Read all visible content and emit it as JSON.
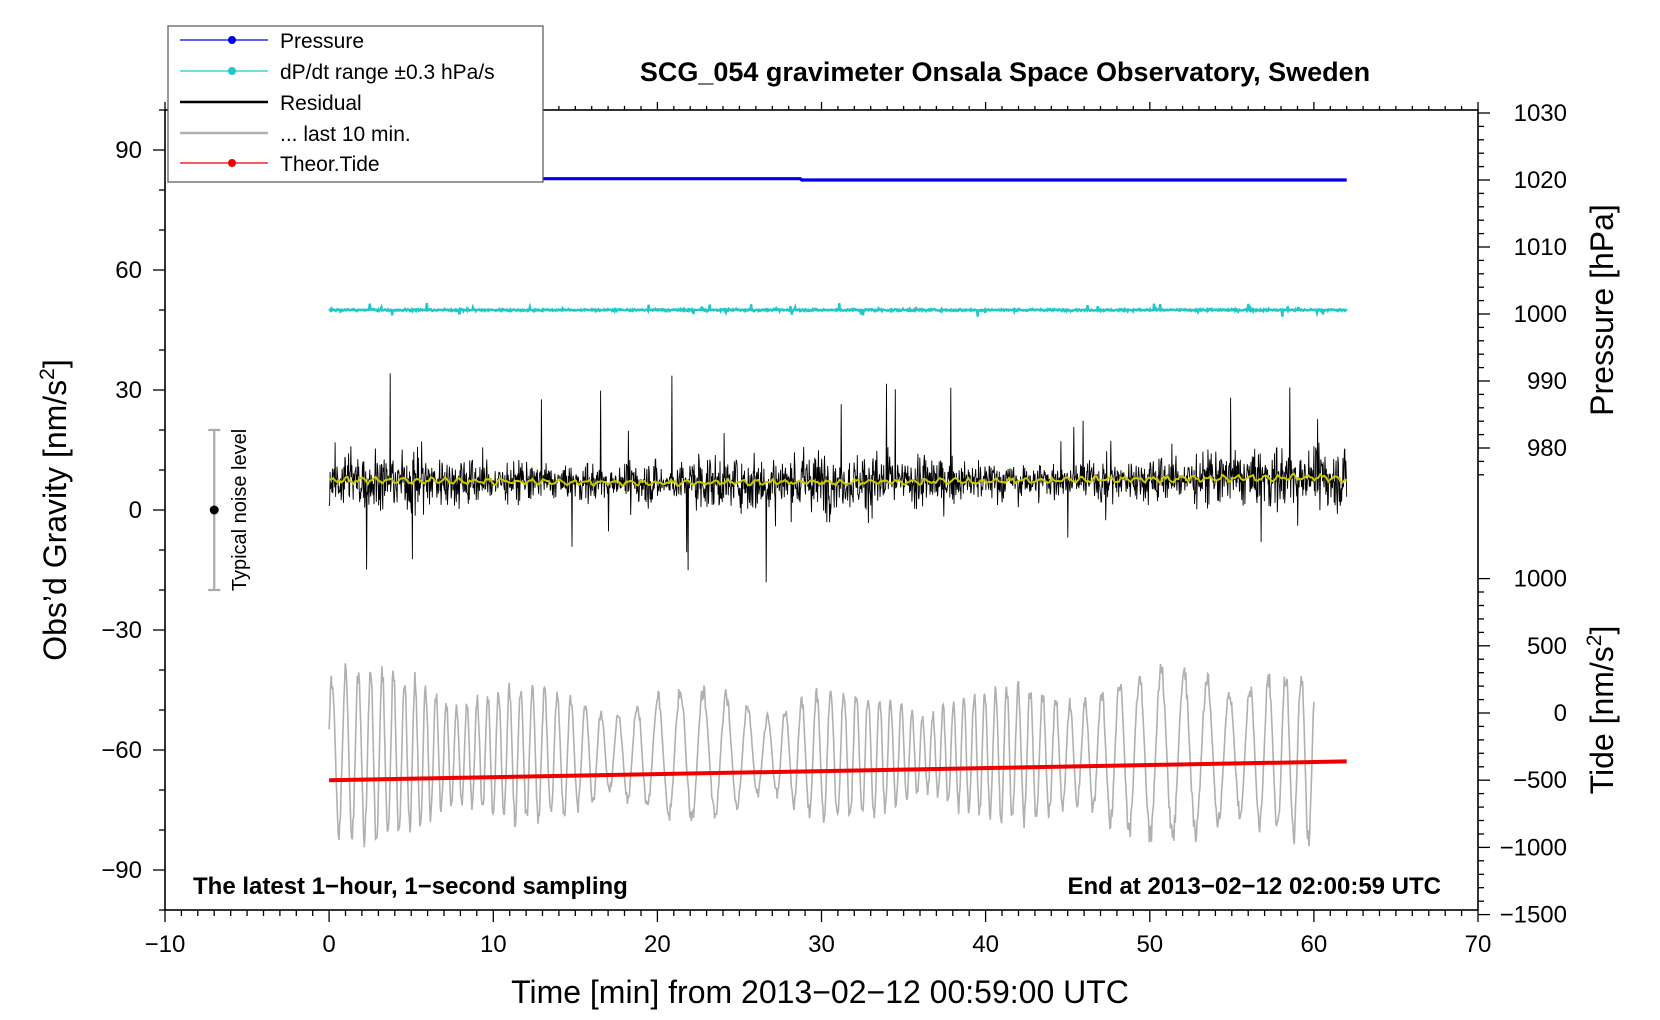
{
  "chart_data": {
    "type": "line",
    "title": "SCG_054 gravimeter Onsala Space Observatory, Sweden",
    "xlabel": "Time [min] from 2013−02−12 00:59:00 UTC",
    "ylabel_left": "Obs’d Gravity [nm/s²]",
    "ylabel_right_top": "Pressure [hPa]",
    "ylabel_right_bottom": "Tide [nm/s²]",
    "xlim": [
      -10,
      70
    ],
    "ylim_left": [
      -100,
      100
    ],
    "ylim_pressure": [
      976,
      1030
    ],
    "ylim_tide": [
      -1500,
      1000
    ],
    "x_ticks": [
      "−10",
      "0",
      "10",
      "20",
      "30",
      "40",
      "50",
      "60",
      "70"
    ],
    "y_left_ticks": [
      "90",
      "60",
      "30",
      "0",
      "−30",
      "−60",
      "−90"
    ],
    "y_pressure_ticks": [
      "1030",
      "1020",
      "1010",
      "1000",
      "990",
      "980"
    ],
    "y_tide_ticks": [
      "1000",
      "500",
      "0",
      "−500",
      "−1000",
      "−1500"
    ],
    "annotations": {
      "bottom_left": "The latest 1−hour, 1−second sampling",
      "bottom_right": "End at 2013−02−12 02:00:59 UTC",
      "noise_label": "Typical noise level"
    },
    "noise_bar": {
      "x": -7,
      "center": 0,
      "low": -20,
      "high": 20
    },
    "legend": {
      "placement": "top-left",
      "entries": [
        {
          "label": "Pressure",
          "color": "#0000ee",
          "style": "line-dot"
        },
        {
          "label": "dP/dt range ±0.3 hPa/s",
          "color": "#22c8c8",
          "style": "line-dot"
        },
        {
          "label": "Residual",
          "color": "#000000",
          "style": "line"
        },
        {
          "label": "... last 10 min.",
          "color": "#b0b0b0",
          "style": "line"
        },
        {
          "label": "Theor.Tide",
          "color": "#ee0000",
          "style": "line-dot"
        }
      ]
    },
    "series": [
      {
        "name": "Pressure",
        "axis": "pressure",
        "color": "#0000ee",
        "x": [
          0,
          28.7,
          28.8,
          62
        ],
        "y": [
          1020.2,
          1020.2,
          1020.0,
          1020.0
        ]
      },
      {
        "name": "dP/dt range",
        "axis": "left",
        "color": "#22c8c8",
        "x_range": [
          0,
          62
        ],
        "center": 50,
        "spread": 0.6
      },
      {
        "name": "Residual",
        "axis": "left",
        "color": "#000000",
        "x_range": [
          0,
          62
        ],
        "center": 7,
        "amplitude": 14
      },
      {
        "name": "Residual smoothed",
        "axis": "left",
        "color": "#c8c800",
        "x": [
          0,
          20,
          40,
          60,
          62
        ],
        "y": [
          7.5,
          6.8,
          7.2,
          8.2,
          7.5
        ]
      },
      {
        "name": "... last 10 min.",
        "axis": "left",
        "color": "#b0b0b0",
        "x_range": [
          0,
          60
        ],
        "center": -61,
        "amplitude": 16
      },
      {
        "name": "Theor.Tide",
        "axis": "tide",
        "color": "#ee0000",
        "x": [
          0,
          62
        ],
        "y": [
          -500,
          -360
        ]
      }
    ],
    "colors": {
      "frame": "#000000",
      "legend_border": "#555555"
    }
  }
}
